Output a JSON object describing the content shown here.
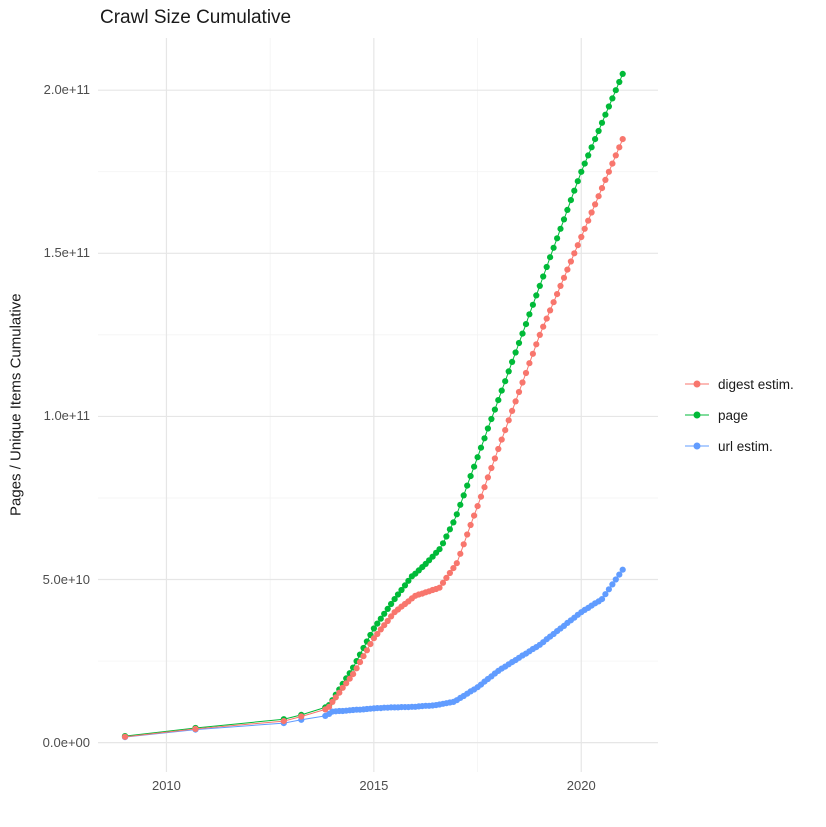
{
  "title": "Crawl Size Cumulative",
  "axes": {
    "y_label": "Pages / Unique Items Cumulative",
    "y_tick_labels": [
      "0.0e+00",
      "5.0e+10",
      "1.0e+11",
      "1.5e+11",
      "2.0e+11"
    ],
    "x_tick_labels": [
      "2010",
      "2015",
      "2020"
    ]
  },
  "legend": {
    "entries": [
      {
        "label": "digest estim.",
        "color": "#F8766D"
      },
      {
        "label": "page",
        "color": "#00BA38"
      },
      {
        "label": "url estim.",
        "color": "#619CFF"
      }
    ]
  },
  "colors": {
    "grid_major": "#e6e6e6",
    "grid_minor": "#f2f2f2",
    "tick_text": "#4d4d4d",
    "text": "#1a1a1a",
    "background": "#ffffff"
  },
  "chart_data": {
    "type": "scatter",
    "title": "Crawl Size Cumulative",
    "xlabel": "",
    "ylabel": "Pages / Unique Items Cumulative",
    "legend_position": "right",
    "grid": true,
    "value_unit": 10000000000.0,
    "xlim": [
      2008.35,
      2021.85
    ],
    "ylim_e10": [
      -0.9,
      21.6
    ],
    "x_major_ticks": [
      2010,
      2015,
      2020
    ],
    "x_minor_ticks": [
      2012.5,
      2017.5
    ],
    "y_major_ticks_e10": [
      0,
      5,
      10,
      15,
      20
    ],
    "y_minor_ticks_e10": [
      2.5,
      7.5,
      12.5,
      17.5
    ],
    "y_major_tick_labels": [
      "0.0e+00",
      "5.0e+10",
      "1.0e+11",
      "1.5e+11",
      "2.0e+11"
    ],
    "x_major_tick_labels": [
      "2010",
      "2015",
      "2020"
    ],
    "x": [
      2009.0,
      2010.7,
      2012.83,
      2013.25,
      2013.83,
      2013.92,
      2014.0,
      2014.083,
      2014.167,
      2014.25,
      2014.333,
      2014.417,
      2014.5,
      2014.583,
      2014.667,
      2014.75,
      2014.833,
      2014.917,
      2015.0,
      2015.083,
      2015.167,
      2015.25,
      2015.333,
      2015.417,
      2015.5,
      2015.583,
      2015.667,
      2015.75,
      2015.833,
      2015.917,
      2016.0,
      2016.083,
      2016.167,
      2016.25,
      2016.333,
      2016.417,
      2016.5,
      2016.583,
      2016.667,
      2016.75,
      2016.833,
      2016.917,
      2017.0,
      2017.083,
      2017.167,
      2017.25,
      2017.333,
      2017.417,
      2017.5,
      2017.583,
      2017.667,
      2017.75,
      2017.833,
      2017.917,
      2018.0,
      2018.083,
      2018.167,
      2018.25,
      2018.333,
      2018.417,
      2018.5,
      2018.583,
      2018.667,
      2018.75,
      2018.833,
      2018.917,
      2019.0,
      2019.083,
      2019.167,
      2019.25,
      2019.333,
      2019.417,
      2019.5,
      2019.583,
      2019.667,
      2019.75,
      2019.833,
      2019.917,
      2020.0,
      2020.083,
      2020.167,
      2020.25,
      2020.333,
      2020.417,
      2020.5,
      2020.583,
      2020.667,
      2020.75,
      2020.833,
      2020.917,
      2021.0
    ],
    "series": [
      {
        "name": "digest estim.",
        "color": "#F8766D",
        "values_e10": [
          0.18,
          0.42,
          0.66,
          0.8,
          1.02,
          1.1,
          1.25,
          1.39,
          1.53,
          1.68,
          1.82,
          1.96,
          2.1,
          2.28,
          2.47,
          2.65,
          2.83,
          3.02,
          3.2,
          3.33,
          3.47,
          3.6,
          3.73,
          3.87,
          4.0,
          4.08,
          4.17,
          4.25,
          4.33,
          4.42,
          4.5,
          4.54,
          4.57,
          4.61,
          4.64,
          4.68,
          4.71,
          4.75,
          4.9,
          5.05,
          5.2,
          5.35,
          5.5,
          5.79,
          6.08,
          6.38,
          6.67,
          6.96,
          7.25,
          7.54,
          7.83,
          8.13,
          8.42,
          8.71,
          9.0,
          9.29,
          9.58,
          9.88,
          10.17,
          10.46,
          10.75,
          11.04,
          11.33,
          11.63,
          11.92,
          12.21,
          12.5,
          12.75,
          13.0,
          13.25,
          13.5,
          13.75,
          14.0,
          14.25,
          14.5,
          14.75,
          15.0,
          15.25,
          15.5,
          15.75,
          16.0,
          16.25,
          16.5,
          16.75,
          17.0,
          17.25,
          17.5,
          17.75,
          18.0,
          18.25,
          18.5
        ]
      },
      {
        "name": "page",
        "color": "#00BA38",
        "values_e10": [
          0.2,
          0.45,
          0.72,
          0.85,
          1.08,
          1.15,
          1.3,
          1.47,
          1.63,
          1.8,
          1.97,
          2.13,
          2.3,
          2.5,
          2.7,
          2.9,
          3.1,
          3.3,
          3.5,
          3.65,
          3.8,
          3.95,
          4.1,
          4.25,
          4.4,
          4.54,
          4.68,
          4.82,
          4.96,
          5.1,
          5.18,
          5.28,
          5.38,
          5.48,
          5.59,
          5.7,
          5.82,
          5.93,
          6.11,
          6.32,
          6.54,
          6.75,
          7.0,
          7.29,
          7.58,
          7.88,
          8.17,
          8.46,
          8.75,
          9.04,
          9.33,
          9.63,
          9.92,
          10.21,
          10.5,
          10.79,
          11.08,
          11.38,
          11.67,
          11.96,
          12.25,
          12.54,
          12.83,
          13.13,
          13.42,
          13.71,
          14.0,
          14.29,
          14.58,
          14.88,
          15.17,
          15.46,
          15.75,
          16.04,
          16.33,
          16.63,
          16.92,
          17.21,
          17.5,
          17.75,
          18.0,
          18.25,
          18.5,
          18.75,
          19.0,
          19.25,
          19.5,
          19.75,
          20.0,
          20.25,
          20.5
        ]
      },
      {
        "name": "url estim.",
        "color": "#619CFF",
        "values_e10": [
          0.17,
          0.4,
          0.6,
          0.7,
          0.82,
          0.88,
          0.95,
          0.96,
          0.97,
          0.97,
          0.98,
          0.99,
          1.0,
          1.01,
          1.01,
          1.02,
          1.03,
          1.04,
          1.05,
          1.06,
          1.06,
          1.07,
          1.07,
          1.08,
          1.08,
          1.08,
          1.09,
          1.09,
          1.09,
          1.1,
          1.1,
          1.11,
          1.12,
          1.13,
          1.13,
          1.14,
          1.15,
          1.17,
          1.19,
          1.21,
          1.23,
          1.25,
          1.3,
          1.37,
          1.43,
          1.5,
          1.57,
          1.63,
          1.7,
          1.78,
          1.87,
          1.95,
          2.03,
          2.12,
          2.2,
          2.27,
          2.33,
          2.4,
          2.47,
          2.53,
          2.6,
          2.67,
          2.73,
          2.8,
          2.87,
          2.93,
          3.0,
          3.08,
          3.17,
          3.25,
          3.33,
          3.42,
          3.5,
          3.58,
          3.67,
          3.75,
          3.83,
          3.92,
          4.0,
          4.07,
          4.13,
          4.2,
          4.27,
          4.33,
          4.4,
          4.55,
          4.7,
          4.85,
          5.0,
          5.15,
          5.3
        ]
      }
    ]
  }
}
